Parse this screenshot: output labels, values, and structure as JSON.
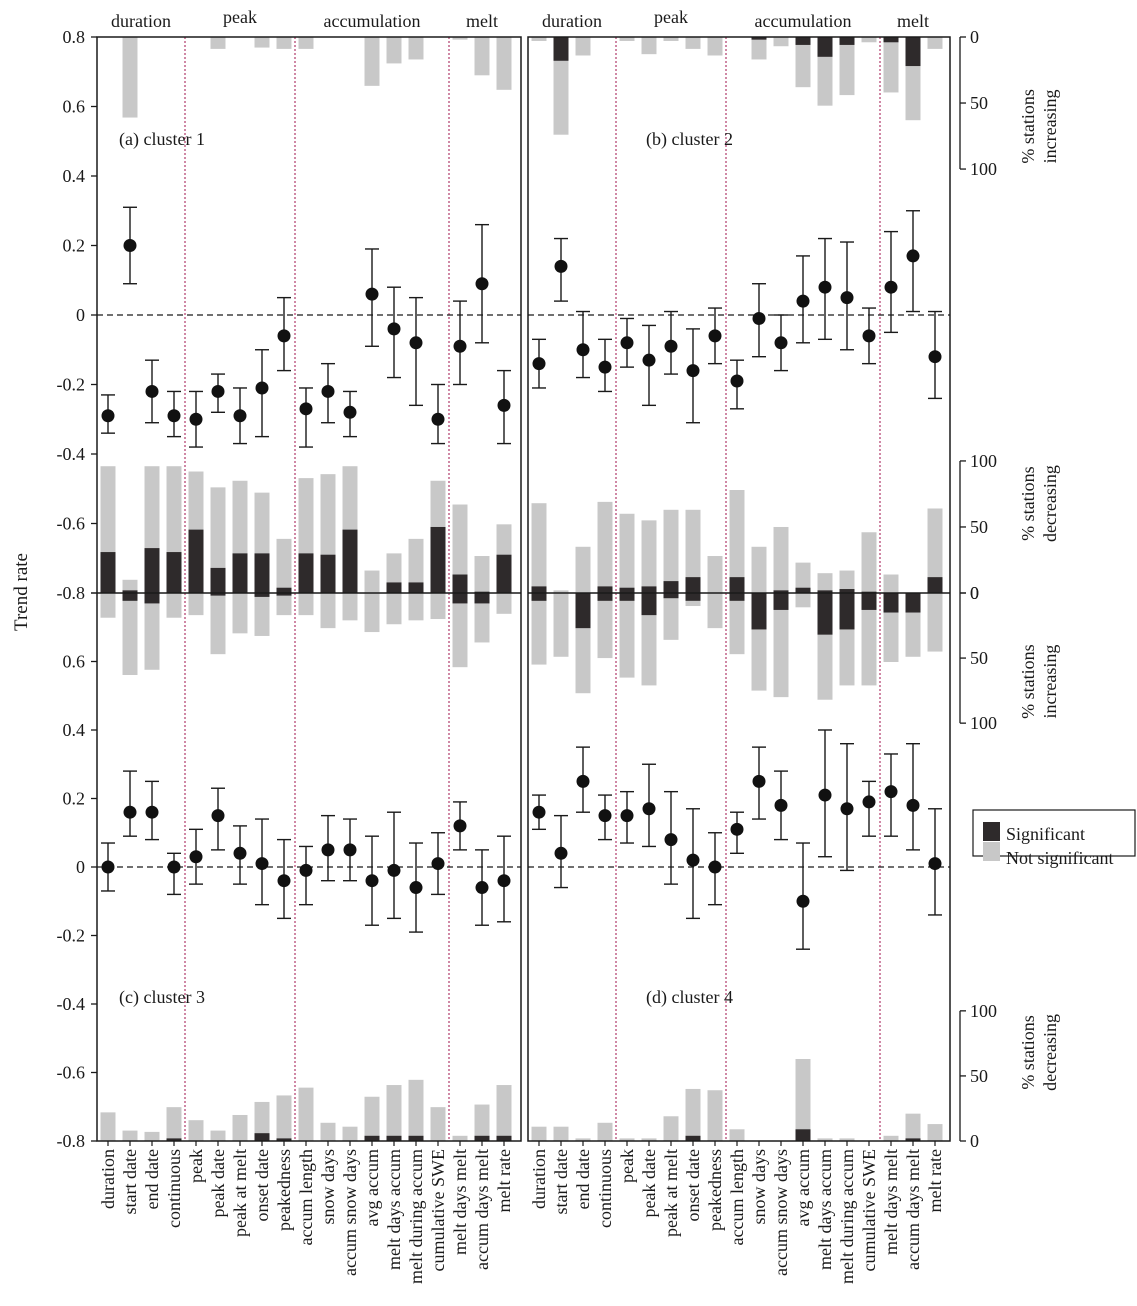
{
  "figure": {
    "y_axis_label": "Trend rate",
    "right_label_increasing": [
      "% stations",
      "increasing"
    ],
    "right_label_decreasing": [
      "% stations",
      "decreasing"
    ],
    "legend": {
      "significant": "Significant",
      "not_significant": "Not significant"
    },
    "groups": [
      {
        "label": "duration"
      },
      {
        "label": "peak"
      },
      {
        "label": "accumulation"
      },
      {
        "label": "melt"
      }
    ],
    "y_ticks": [
      "0.8",
      "0.6",
      "0.4",
      "0.2",
      "0",
      "-0.2",
      "-0.4",
      "-0.6",
      "-0.8"
    ],
    "increasing_ticks": [
      "0",
      "50",
      "100"
    ],
    "decreasing_ticks": [
      "100",
      "50",
      "0"
    ],
    "panel_labels": [
      "(a) cluster 1",
      "(b) cluster 2",
      "(c) cluster 3",
      "(d) cluster 4"
    ],
    "colors": {
      "significant": "#2e2a2b",
      "not_significant": "#c8c8c8",
      "separator": "#b03a6a"
    }
  },
  "chart_data": {
    "type": "scatter",
    "categories": [
      "duration",
      "start date",
      "end date",
      "continuous",
      "peak",
      "peak date",
      "peak at melt",
      "onset date",
      "peakedness",
      "accum length",
      "snow days",
      "accum snow days",
      "avg accum",
      "melt days accum",
      "melt during accum",
      "cumulative SWE",
      "melt days melt",
      "accum days melt",
      "melt rate"
    ],
    "group_starts": [
      0,
      4,
      9,
      16
    ],
    "ylim": [
      -0.8,
      0.8
    ],
    "pct_range": [
      0,
      100
    ],
    "panels": [
      {
        "name": "(a) cluster 1",
        "trend": [
          -0.29,
          0.2,
          -0.22,
          -0.29,
          -0.3,
          -0.22,
          -0.29,
          -0.21,
          -0.06,
          -0.27,
          -0.22,
          -0.28,
          0.06,
          -0.04,
          -0.08,
          -0.3,
          -0.09,
          0.09,
          -0.26
        ],
        "ci_low": [
          -0.34,
          0.09,
          -0.31,
          -0.35,
          -0.38,
          -0.28,
          -0.37,
          -0.35,
          -0.16,
          -0.38,
          -0.31,
          -0.35,
          -0.09,
          -0.18,
          -0.26,
          -0.37,
          -0.2,
          -0.08,
          -0.37
        ],
        "ci_high": [
          -0.23,
          0.31,
          -0.13,
          -0.22,
          -0.22,
          -0.17,
          -0.21,
          -0.1,
          0.05,
          -0.21,
          -0.14,
          -0.22,
          0.19,
          0.08,
          0.05,
          -0.2,
          0.04,
          0.26,
          -0.16
        ],
        "increasing_total": [
          0,
          61,
          0,
          0,
          0,
          9,
          0,
          8,
          9,
          9,
          0,
          0,
          37,
          20,
          17,
          0,
          2,
          29,
          40
        ],
        "increasing_significant": [
          0,
          0,
          0,
          0,
          0,
          0,
          0,
          0,
          0,
          0,
          0,
          0,
          0,
          0,
          0,
          0,
          0,
          0,
          0
        ],
        "decreasing_total": [
          96,
          10,
          96,
          96,
          92,
          80,
          85,
          76,
          41,
          87,
          90,
          96,
          17,
          30,
          41,
          85,
          67,
          28,
          52
        ],
        "decreasing_significant": [
          31,
          2,
          34,
          31,
          48,
          19,
          30,
          30,
          4,
          30,
          29,
          48,
          0,
          8,
          8,
          50,
          14,
          1,
          29
        ]
      },
      {
        "name": "(b) cluster 2",
        "trend": [
          -0.14,
          0.14,
          -0.1,
          -0.15,
          -0.08,
          -0.13,
          -0.09,
          -0.16,
          -0.06,
          -0.19,
          -0.01,
          -0.08,
          0.04,
          0.08,
          0.05,
          -0.06,
          0.08,
          0.17,
          -0.12
        ],
        "ci_low": [
          -0.21,
          0.04,
          -0.18,
          -0.22,
          -0.15,
          -0.26,
          -0.17,
          -0.31,
          -0.14,
          -0.27,
          -0.12,
          -0.16,
          -0.08,
          -0.07,
          -0.1,
          -0.14,
          -0.05,
          0.01,
          -0.24
        ],
        "ci_high": [
          -0.07,
          0.22,
          0.01,
          -0.07,
          -0.01,
          -0.03,
          0.01,
          -0.04,
          0.02,
          -0.13,
          0.09,
          0.0,
          0.17,
          0.22,
          0.21,
          0.02,
          0.24,
          0.3,
          0.01
        ],
        "increasing_total": [
          3,
          74,
          14,
          0,
          3,
          13,
          3,
          9,
          14,
          0,
          17,
          7,
          38,
          52,
          44,
          4,
          42,
          63,
          9
        ],
        "increasing_significant": [
          0,
          18,
          0,
          0,
          0,
          0,
          0,
          0,
          0,
          0,
          2,
          0,
          6,
          15,
          6,
          0,
          4,
          22,
          0
        ],
        "decreasing_total": [
          68,
          2,
          35,
          69,
          60,
          55,
          63,
          63,
          28,
          78,
          35,
          50,
          23,
          15,
          17,
          46,
          14,
          0,
          64
        ],
        "decreasing_significant": [
          5,
          0,
          0,
          5,
          4,
          5,
          9,
          12,
          0,
          12,
          0,
          2,
          4,
          2,
          3,
          1,
          0,
          0,
          12
        ]
      },
      {
        "name": "(c) cluster 3",
        "trend": [
          0.0,
          0.16,
          0.16,
          0.0,
          0.03,
          0.15,
          0.04,
          0.01,
          -0.04,
          -0.01,
          0.05,
          0.05,
          -0.04,
          -0.01,
          -0.06,
          0.01,
          0.12,
          -0.06,
          -0.04
        ],
        "ci_low": [
          -0.07,
          0.09,
          0.08,
          -0.08,
          -0.05,
          0.05,
          -0.05,
          -0.11,
          -0.15,
          -0.11,
          -0.04,
          -0.04,
          -0.17,
          -0.15,
          -0.19,
          -0.08,
          0.05,
          -0.17,
          -0.16
        ],
        "ci_high": [
          0.07,
          0.28,
          0.25,
          0.04,
          0.11,
          0.23,
          0.12,
          0.14,
          0.08,
          0.06,
          0.15,
          0.14,
          0.09,
          0.16,
          0.07,
          0.1,
          0.19,
          0.05,
          0.09
        ],
        "increasing_total": [
          19,
          63,
          59,
          19,
          17,
          47,
          31,
          33,
          17,
          17,
          27,
          21,
          30,
          24,
          21,
          20,
          57,
          38,
          16
        ],
        "increasing_significant": [
          0,
          6,
          8,
          0,
          0,
          2,
          0,
          3,
          2,
          0,
          0,
          0,
          0,
          0,
          0,
          0,
          8,
          8,
          0
        ],
        "decreasing_total": [
          22,
          8,
          7,
          26,
          16,
          8,
          20,
          30,
          35,
          41,
          14,
          11,
          34,
          43,
          47,
          26,
          4,
          28,
          43
        ],
        "decreasing_significant": [
          0,
          0,
          0,
          2,
          0,
          0,
          0,
          6,
          2,
          0,
          0,
          0,
          4,
          4,
          4,
          0,
          0,
          4,
          4
        ]
      },
      {
        "name": "(d) cluster 4",
        "trend": [
          0.16,
          0.04,
          0.25,
          0.15,
          0.15,
          0.17,
          0.08,
          0.02,
          0.0,
          0.11,
          0.25,
          0.18,
          -0.1,
          0.21,
          0.17,
          0.19,
          0.22,
          0.18,
          0.01
        ],
        "ci_low": [
          0.11,
          -0.06,
          0.16,
          0.08,
          0.07,
          0.06,
          -0.05,
          -0.15,
          -0.11,
          0.04,
          0.14,
          0.08,
          -0.24,
          0.03,
          -0.01,
          0.09,
          0.09,
          0.05,
          -0.14
        ],
        "ci_high": [
          0.21,
          0.15,
          0.35,
          0.21,
          0.22,
          0.3,
          0.22,
          0.17,
          0.1,
          0.16,
          0.35,
          0.28,
          0.07,
          0.4,
          0.36,
          0.25,
          0.33,
          0.36,
          0.17
        ],
        "increasing_total": [
          55,
          49,
          77,
          50,
          65,
          71,
          36,
          10,
          27,
          47,
          75,
          80,
          11,
          82,
          71,
          71,
          53,
          49,
          45
        ],
        "increasing_significant": [
          6,
          0,
          27,
          6,
          6,
          17,
          4,
          6,
          0,
          6,
          28,
          13,
          0,
          32,
          28,
          13,
          15,
          15,
          0
        ],
        "decreasing_total": [
          11,
          11,
          2,
          14,
          2,
          2,
          19,
          40,
          39,
          9,
          0,
          0,
          63,
          2,
          2,
          0,
          4,
          21,
          13
        ],
        "decreasing_significant": [
          0,
          0,
          0,
          0,
          0,
          0,
          0,
          4,
          0,
          0,
          0,
          0,
          9,
          0,
          0,
          0,
          0,
          2,
          0
        ]
      }
    ]
  }
}
